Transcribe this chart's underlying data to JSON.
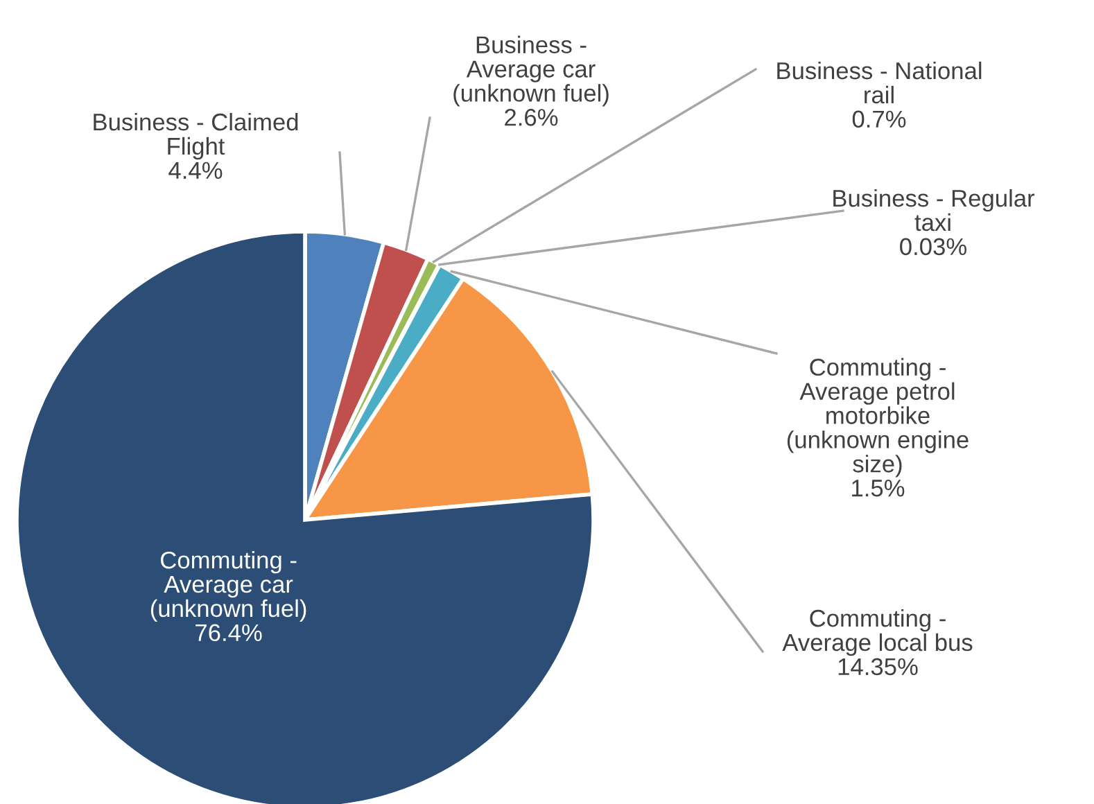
{
  "chart_data": {
    "type": "pie",
    "categories": [
      "Business - Claimed\nFlight",
      "Business -\nAverage car\n(unknown fuel)",
      "Business - National\nrail",
      "Business - Regular\ntaxi",
      "Commuting -\nAverage petrol\nmotorbike\n(unknown engine\nsize)",
      "Commuting -\nAverage local bus",
      "Commuting -\nAverage car\n(unknown fuel)"
    ],
    "values": [
      4.4,
      2.6,
      0.7,
      0.03,
      1.5,
      14.35,
      76.4
    ],
    "value_labels": [
      "4.4%",
      "2.6%",
      "0.7%",
      "0.03%",
      "1.5%",
      "14.35%",
      "76.4%"
    ],
    "colors": [
      "#4f81bd",
      "#c0504d",
      "#9bbb59",
      "#8064a2",
      "#4bacc6",
      "#f79646",
      "#2c4d75"
    ]
  }
}
